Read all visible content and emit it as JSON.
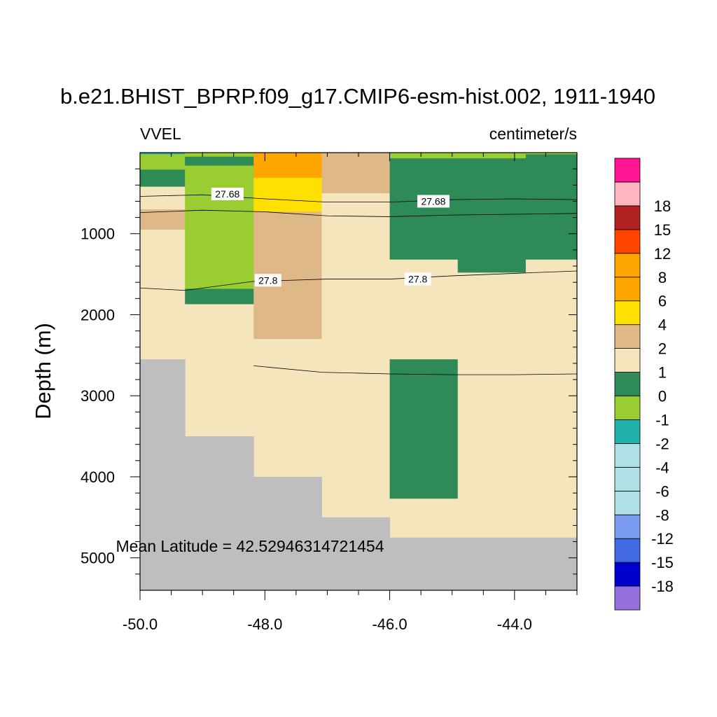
{
  "title": "b.e21.BHIST_BPRP.f09_g17.CMIP6-esm-hist.002, 1911-1940",
  "left_label": "VVEL",
  "right_label": "centimeter/s",
  "annotation": "Mean Latitude = 42.52946314721454",
  "chart_data": {
    "type": "heatmap",
    "title": "b.e21.BHIST_BPRP.f09_g17.CMIP6-esm-hist.002, 1911-1940",
    "xlabel": "",
    "ylabel": "Depth (m)",
    "xlim": [
      -50.0,
      -43.0
    ],
    "ylim": [
      5400,
      0
    ],
    "y_reversed": true,
    "x_ticks": [
      -50.0,
      -48.0,
      -46.0,
      -44.0
    ],
    "x_tick_labels": [
      "-50.0",
      "-48.0",
      "-46.0",
      "-44.0"
    ],
    "y_ticks": [
      1000,
      2000,
      3000,
      4000,
      5000
    ],
    "y_tick_labels": [
      "1000",
      "2000",
      "3000",
      "4000",
      "5000"
    ],
    "missing_color": "#bebebe",
    "columns": [
      {
        "x0": -50.0,
        "x1": -49.28,
        "fill": [
          [
            0,
            20,
            "#20b2aa"
          ],
          [
            20,
            210,
            "#9acd32"
          ],
          [
            210,
            420,
            "#2e8b57"
          ],
          [
            420,
            700,
            "#f5e5bc"
          ],
          [
            700,
            950,
            "#deb887"
          ],
          [
            950,
            2550,
            "#f5e5bc"
          ]
        ],
        "land_from": 2550
      },
      {
        "x0": -49.28,
        "x1": -48.18,
        "fill": [
          [
            0,
            50,
            "#9acd32"
          ],
          [
            50,
            160,
            "#2e8b57"
          ],
          [
            160,
            1680,
            "#9acd32"
          ],
          [
            1680,
            1870,
            "#2e8b57"
          ],
          [
            1870,
            3500,
            "#f5e5bc"
          ]
        ],
        "land_from": 3500
      },
      {
        "x0": -48.18,
        "x1": -47.09,
        "fill": [
          [
            0,
            310,
            "#ffa500"
          ],
          [
            310,
            730,
            "#ffe000"
          ],
          [
            730,
            2300,
            "#deb887"
          ],
          [
            2300,
            4000,
            "#f5e5bc"
          ]
        ],
        "land_from": 4000
      },
      {
        "x0": -47.09,
        "x1": -46.0,
        "fill": [
          [
            0,
            500,
            "#deb887"
          ],
          [
            500,
            4500,
            "#f5e5bc"
          ]
        ],
        "land_from": 4500
      },
      {
        "x0": -46.0,
        "x1": -44.91,
        "fill": [
          [
            0,
            70,
            "#9acd32"
          ],
          [
            70,
            1320,
            "#2e8b57"
          ],
          [
            1320,
            2550,
            "#f5e5bc"
          ],
          [
            2550,
            4270,
            "#2e8b57"
          ],
          [
            4270,
            4750,
            "#f5e5bc"
          ]
        ],
        "land_from": 4750
      },
      {
        "x0": -44.91,
        "x1": -43.82,
        "fill": [
          [
            0,
            70,
            "#9acd32"
          ],
          [
            70,
            1480,
            "#2e8b57"
          ],
          [
            1480,
            4750,
            "#f5e5bc"
          ]
        ],
        "land_from": 4750
      },
      {
        "x0": -43.82,
        "x1": -43.0,
        "fill": [
          [
            0,
            20,
            "#9acd32"
          ],
          [
            20,
            1320,
            "#2e8b57"
          ],
          [
            1320,
            4750,
            "#f5e5bc"
          ]
        ],
        "land_from": 4750
      }
    ],
    "contours": [
      {
        "level": "27.68",
        "points": [
          [
            -50.0,
            540
          ],
          [
            -49.0,
            520
          ],
          [
            -48.0,
            570
          ],
          [
            -47.0,
            610
          ],
          [
            -46.0,
            610
          ],
          [
            -45.0,
            580
          ],
          [
            -44.0,
            570
          ],
          [
            -43.0,
            580
          ]
        ],
        "labels": [
          [
            -48.6,
            510
          ],
          [
            -45.3,
            600
          ]
        ]
      },
      {
        "level": "",
        "points": [
          [
            -50.0,
            740
          ],
          [
            -49.0,
            710
          ],
          [
            -48.0,
            730
          ],
          [
            -47.0,
            780
          ],
          [
            -46.0,
            790
          ],
          [
            -45.0,
            770
          ],
          [
            -44.0,
            760
          ],
          [
            -43.0,
            750
          ]
        ],
        "labels": []
      },
      {
        "level": "27.8",
        "points": [
          [
            -50.0,
            1670
          ],
          [
            -49.28,
            1700
          ],
          [
            -48.2,
            1590
          ],
          [
            -47.0,
            1560
          ],
          [
            -46.0,
            1560
          ],
          [
            -45.0,
            1520
          ],
          [
            -44.0,
            1490
          ],
          [
            -43.0,
            1460
          ]
        ],
        "labels": [
          [
            -47.95,
            1575
          ],
          [
            -45.55,
            1560
          ]
        ]
      },
      {
        "level": "",
        "points": [
          [
            -48.18,
            2630
          ],
          [
            -47.09,
            2710
          ],
          [
            -46.0,
            2730
          ],
          [
            -45.0,
            2740
          ],
          [
            -44.0,
            2740
          ],
          [
            -43.0,
            2730
          ]
        ],
        "labels": []
      }
    ],
    "colorbar": {
      "colors": [
        "#9370db",
        "#0000cd",
        "#4169e1",
        "#7b9cf0",
        "#b0e0e6",
        "#b0e0e6",
        "#b0e0e6",
        "#20b2aa",
        "#9acd32",
        "#2e8b57",
        "#f5e5bc",
        "#deb887",
        "#ffe000",
        "#ffa500",
        "#ffa500",
        "#ff4500",
        "#b22222",
        "#ffb6c1",
        "#ff1493"
      ],
      "labels": [
        "-18",
        "-15",
        "-12",
        "-8",
        "-6",
        "-4",
        "-2",
        "-1",
        "0",
        "1",
        "2",
        "4",
        "6",
        "8",
        "12",
        "15",
        "18"
      ]
    }
  }
}
